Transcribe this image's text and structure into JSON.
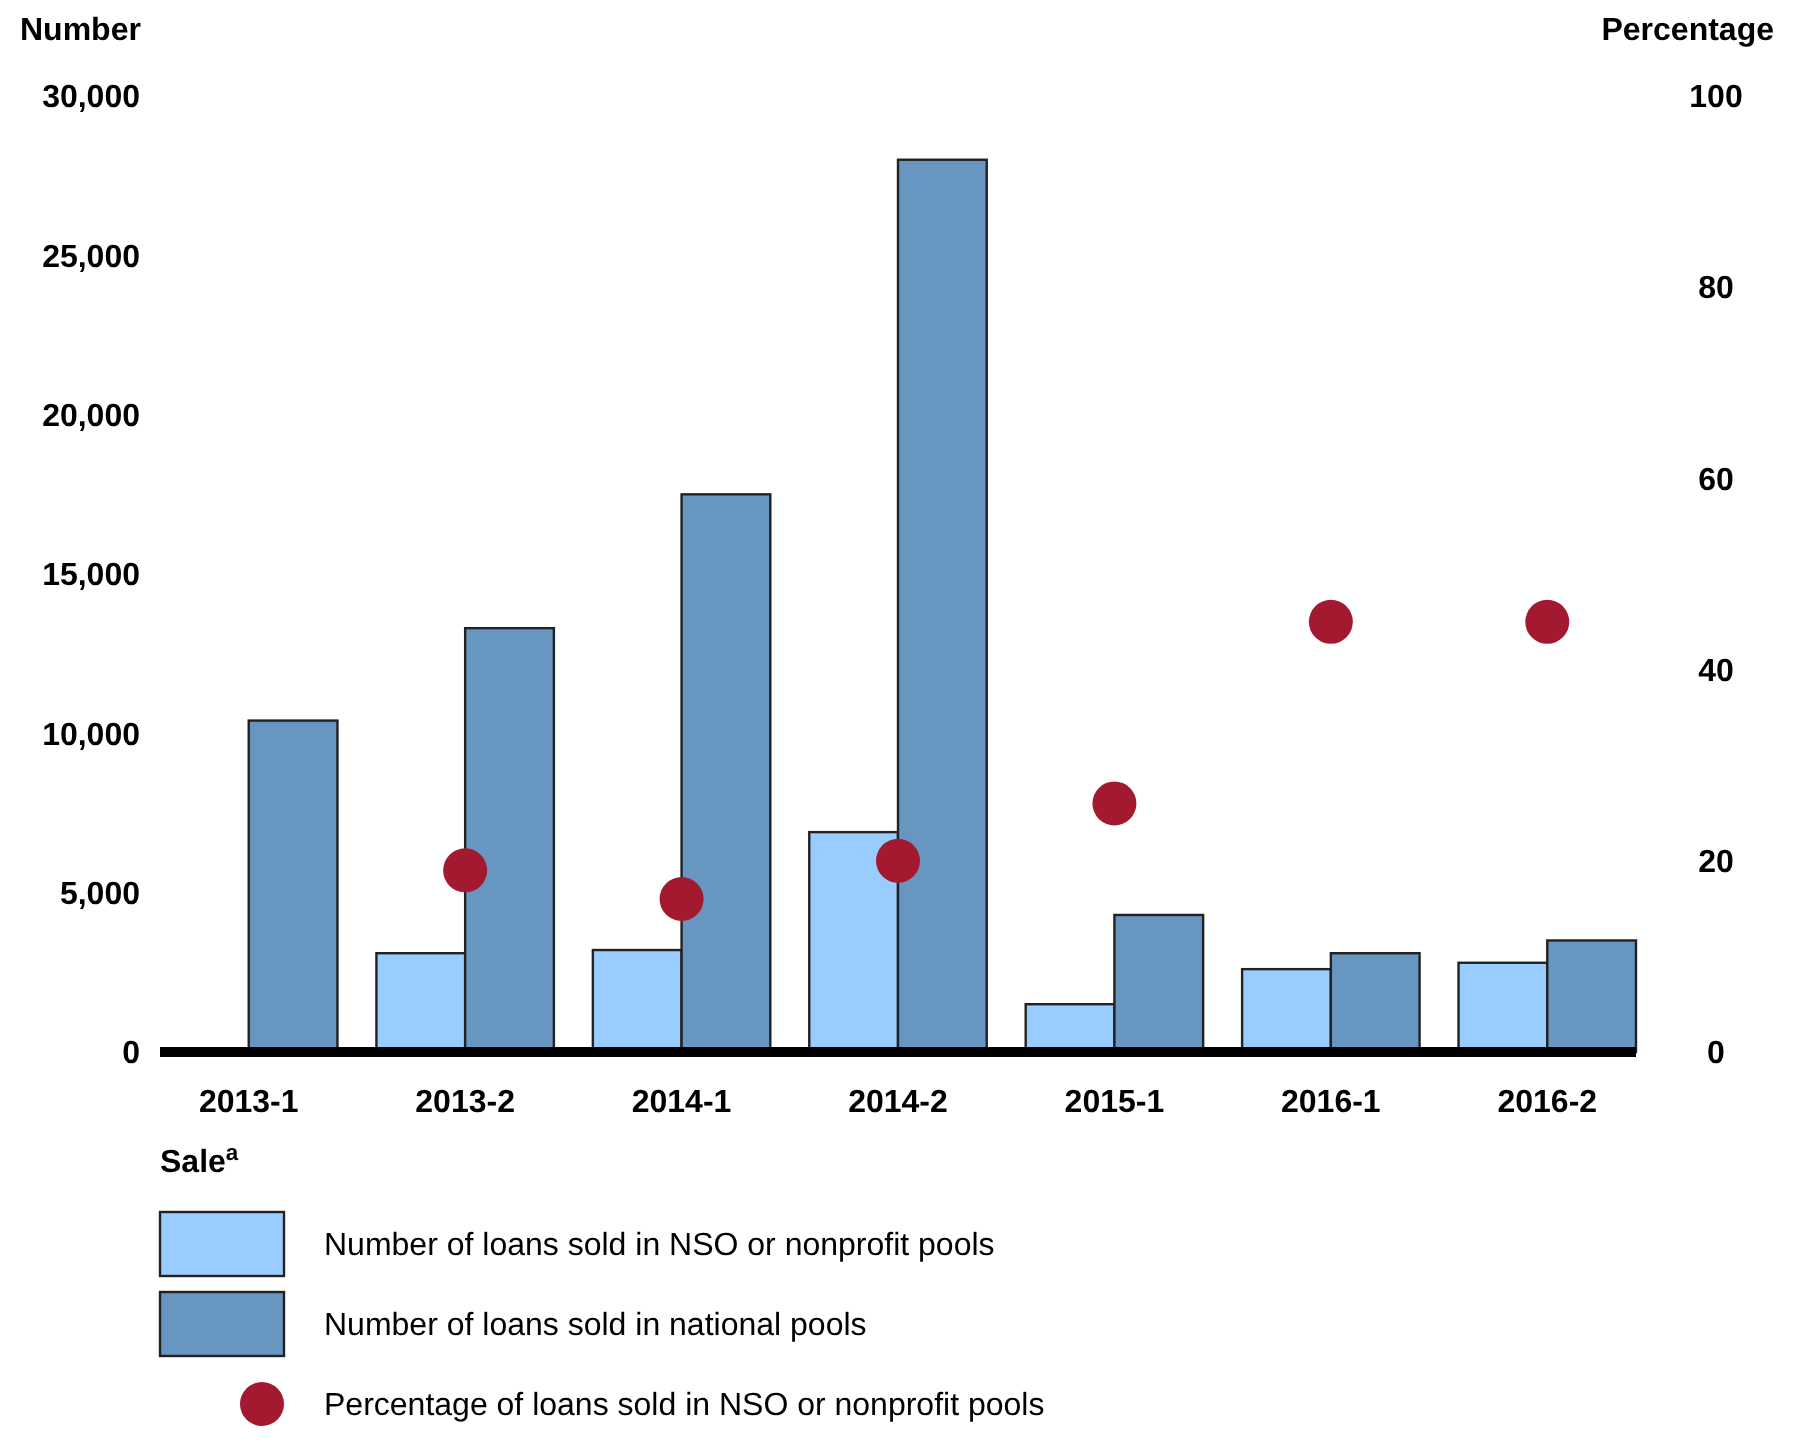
{
  "chart_data": {
    "type": "bar",
    "xlabel": "Sale$^{a}$",
    "ylabel": "Number",
    "y2label": "Percentage",
    "categories": [
      "2013-1",
      "2013-2",
      "2014-1",
      "2014-2",
      "2015-1",
      "2016-1",
      "2016-2"
    ],
    "series": [
      {
        "name": "Number of loans sold in NSO or nonprofit pools",
        "color": "#99ccff",
        "values": [
          null,
          3100,
          3200,
          6900,
          1500,
          2600,
          2800
        ]
      },
      {
        "name": "Number of loans sold in national pools",
        "color": "#6796c0",
        "values": [
          10400,
          13300,
          17500,
          28000,
          4300,
          3100,
          3500
        ]
      },
      {
        "name": "Percentage of loans sold in NSO or nonprofit pools",
        "type": "scatter",
        "axis": "y2",
        "color": "#a31a30",
        "x": [
          "2013-2",
          "2014-1",
          "2014-2",
          "2015-1",
          "2016-1",
          "2016-2"
        ],
        "values": [
          19,
          16,
          20,
          26,
          45,
          45
        ]
      }
    ],
    "ylim": [
      0,
      30000
    ],
    "yticks": [
      {
        "value": 0,
        "label": "0"
      },
      {
        "value": 5000,
        "label": "5,000"
      },
      {
        "value": 10000,
        "label": "10,000"
      },
      {
        "value": 15000,
        "label": "15,000"
      },
      {
        "value": 20000,
        "label": "20,000"
      },
      {
        "value": 25000,
        "label": "25,000"
      },
      {
        "value": 30000,
        "label": "30,000"
      }
    ],
    "y2lim": [
      0,
      100
    ],
    "y2ticks": [
      0,
      20,
      40,
      60,
      80,
      100
    ],
    "marker": "circle",
    "grid": false,
    "legend": "bottom"
  }
}
